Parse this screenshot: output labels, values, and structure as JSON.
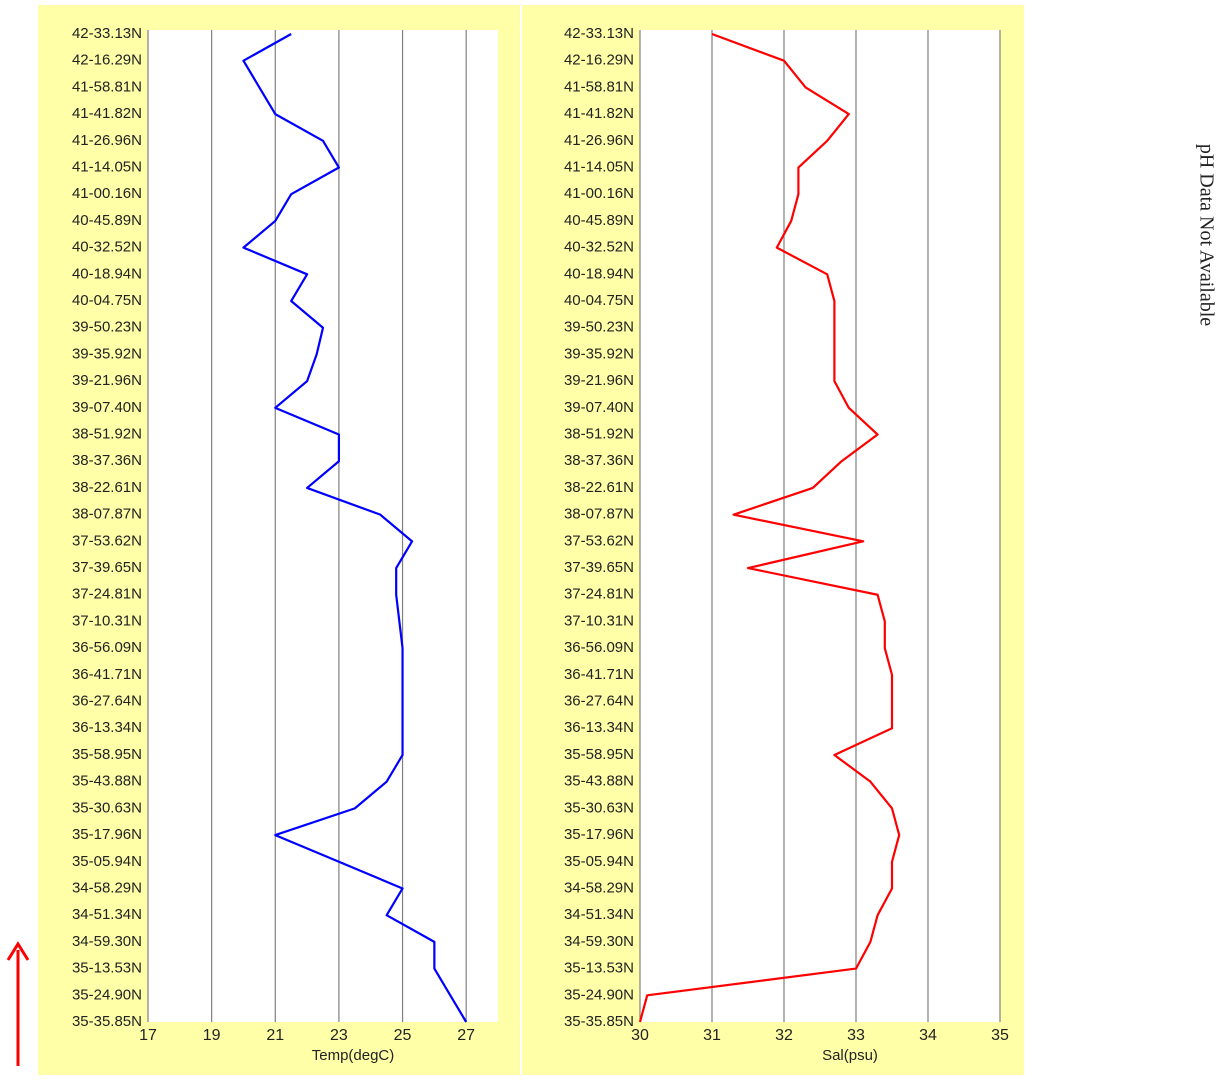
{
  "chart_data": [
    {
      "type": "line",
      "x_label": "Temp(degC)",
      "orientation": "horizontal",
      "grid": true,
      "categories": [
        "42-33.13N",
        "42-16.29N",
        "41-58.81N",
        "41-41.82N",
        "41-26.96N",
        "41-14.05N",
        "41-00.16N",
        "40-45.89N",
        "40-32.52N",
        "40-18.94N",
        "40-04.75N",
        "39-50.23N",
        "39-35.92N",
        "39-21.96N",
        "39-07.40N",
        "38-51.92N",
        "38-37.36N",
        "38-22.61N",
        "38-07.87N",
        "37-53.62N",
        "37-39.65N",
        "37-24.81N",
        "37-10.31N",
        "36-56.09N",
        "36-41.71N",
        "36-27.64N",
        "36-13.34N",
        "35-58.95N",
        "35-43.88N",
        "35-30.63N",
        "35-17.96N",
        "35-05.94N",
        "34-58.29N",
        "34-51.34N",
        "34-59.30N",
        "35-13.53N",
        "35-24.90N",
        "35-35.85N"
      ],
      "series": [
        {
          "name": "Temp",
          "color": "#0000ff",
          "values": [
            21.5,
            20,
            20.5,
            21,
            22.5,
            23,
            21.5,
            21,
            20,
            22,
            21.5,
            22.5,
            22.3,
            22,
            21,
            23,
            23,
            22,
            24.3,
            25.3,
            24.8,
            24.8,
            24.9,
            25,
            25,
            25,
            25,
            25,
            24.5,
            23.5,
            21,
            23,
            25,
            24.5,
            26,
            26,
            26.5,
            27
          ]
        }
      ],
      "xlim": [
        17,
        28
      ],
      "xticks": [
        17,
        19,
        21,
        23,
        25,
        27
      ]
    },
    {
      "type": "line",
      "x_label": "Sal(psu)",
      "orientation": "horizontal",
      "grid": true,
      "categories": [
        "42-33.13N",
        "42-16.29N",
        "41-58.81N",
        "41-41.82N",
        "41-26.96N",
        "41-14.05N",
        "41-00.16N",
        "40-45.89N",
        "40-32.52N",
        "40-18.94N",
        "40-04.75N",
        "39-50.23N",
        "39-35.92N",
        "39-21.96N",
        "39-07.40N",
        "38-51.92N",
        "38-37.36N",
        "38-22.61N",
        "38-07.87N",
        "37-53.62N",
        "37-39.65N",
        "37-24.81N",
        "37-10.31N",
        "36-56.09N",
        "36-41.71N",
        "36-27.64N",
        "36-13.34N",
        "35-58.95N",
        "35-43.88N",
        "35-30.63N",
        "35-17.96N",
        "35-05.94N",
        "34-58.29N",
        "34-51.34N",
        "34-59.30N",
        "35-13.53N",
        "35-24.90N",
        "35-35.85N"
      ],
      "series": [
        {
          "name": "Sal",
          "color": "#ff0000",
          "values": [
            31,
            32,
            32.3,
            32.9,
            32.6,
            32.2,
            32.2,
            32.1,
            31.9,
            32.6,
            32.7,
            32.7,
            32.7,
            32.7,
            32.9,
            33.3,
            32.8,
            32.4,
            31.3,
            33.1,
            31.5,
            33.3,
            33.4,
            33.4,
            33.5,
            33.5,
            33.5,
            32.7,
            33.2,
            33.5,
            33.6,
            33.5,
            33.5,
            33.3,
            33.2,
            33,
            30.1,
            30
          ]
        }
      ],
      "xlim": [
        30,
        35
      ],
      "xticks": [
        30,
        31,
        32,
        33,
        34,
        35
      ]
    }
  ],
  "annotation": "pH Data Not Available"
}
